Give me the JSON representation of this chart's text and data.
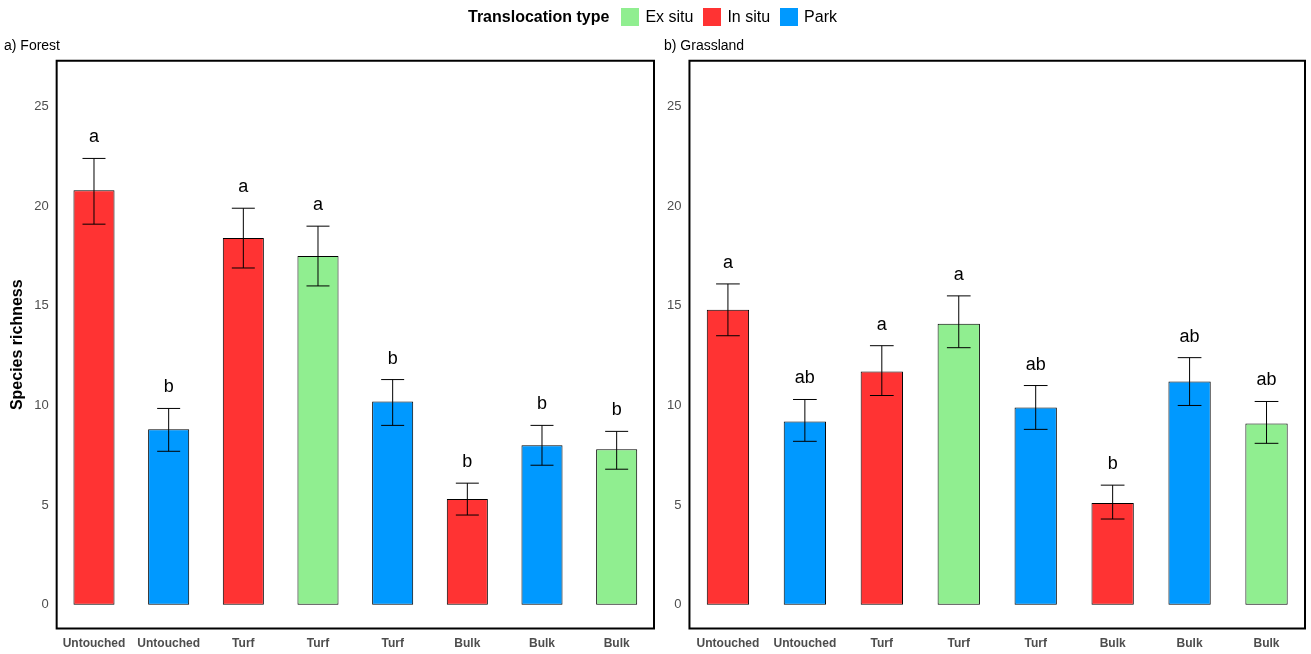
{
  "chart_data": [
    {
      "type": "bar",
      "title": "a) Forest",
      "ylabel": "Species richness",
      "legend_title": "Translocation type",
      "legend": "top",
      "stacked": true,
      "grid": false,
      "categories": [
        "Untouched",
        "Untouched",
        "Turf",
        "Turf",
        "Turf",
        "Bulk",
        "Bulk",
        "Bulk"
      ],
      "ylim": [
        -1.2,
        27.3
      ],
      "yticks": [
        0,
        5,
        10,
        15,
        20,
        25
      ],
      "series": [
        {
          "name": "Ex situ",
          "color": "#90ee90",
          "values": [
            null,
            null,
            null,
            17.5,
            null,
            null,
            null,
            7.8
          ],
          "errors": [
            null,
            null,
            null,
            [
              16.0,
              19.0
            ],
            null,
            null,
            null,
            [
              6.8,
              8.7
            ]
          ],
          "value_labels": [
            null,
            null,
            null,
            "a",
            null,
            null,
            null,
            "b"
          ]
        },
        {
          "name": "In situ",
          "color": "#ff3333",
          "values": [
            20.8,
            null,
            18.4,
            null,
            null,
            5.3,
            null,
            null
          ],
          "errors": [
            [
              19.1,
              22.4
            ],
            null,
            [
              16.9,
              19.9
            ],
            null,
            null,
            [
              4.5,
              6.1
            ],
            null,
            null
          ],
          "value_labels": [
            "a",
            null,
            "a",
            null,
            null,
            "b",
            null,
            null
          ]
        },
        {
          "name": "Park",
          "color": "#0099ff",
          "values": [
            null,
            8.8,
            null,
            null,
            10.2,
            null,
            8.0,
            null
          ],
          "errors": [
            null,
            [
              7.7,
              9.85
            ],
            null,
            null,
            [
              9.0,
              11.3
            ],
            null,
            [
              7.0,
              9.0
            ],
            null
          ],
          "value_labels": [
            null,
            "b",
            null,
            null,
            "b",
            null,
            "b",
            null
          ]
        }
      ]
    },
    {
      "type": "bar",
      "title": "b) Grassland",
      "stacked": true,
      "grid": false,
      "categories": [
        "Untouched",
        "Untouched",
        "Turf",
        "Turf",
        "Turf",
        "Bulk",
        "Bulk",
        "Bulk"
      ],
      "ylim": [
        -1.2,
        27.3
      ],
      "yticks": [
        0,
        5,
        10,
        15,
        20,
        25
      ],
      "series": [
        {
          "color": "#90ee90",
          "values": [
            null,
            null,
            null,
            14.1,
            null,
            null,
            null,
            9.1
          ],
          "errors": [
            null,
            null,
            null,
            [
              12.9,
              15.5
            ],
            null,
            null,
            null,
            [
              8.1,
              10.2
            ]
          ],
          "value_labels": [
            null,
            null,
            null,
            "a",
            null,
            null,
            null,
            "ab"
          ]
        },
        {
          "color": "#ff3333",
          "values": [
            14.8,
            null,
            11.7,
            null,
            null,
            5.1,
            null,
            null
          ],
          "errors": [
            [
              13.5,
              16.1
            ],
            null,
            [
              10.5,
              13.0
            ],
            null,
            null,
            [
              4.3,
              6.0
            ],
            null,
            null
          ],
          "value_labels": [
            "a",
            null,
            "a",
            null,
            null,
            "b",
            null,
            null
          ]
        },
        {
          "color": "#0099ff",
          "values": [
            null,
            9.2,
            null,
            null,
            9.9,
            null,
            11.2,
            null
          ],
          "errors": [
            null,
            [
              8.2,
              10.3
            ],
            null,
            null,
            [
              8.8,
              11.0
            ],
            null,
            [
              10.0,
              12.4
            ],
            null
          ],
          "value_labels": [
            null,
            "ab",
            null,
            null,
            "ab",
            null,
            "ab",
            null
          ]
        }
      ]
    }
  ]
}
